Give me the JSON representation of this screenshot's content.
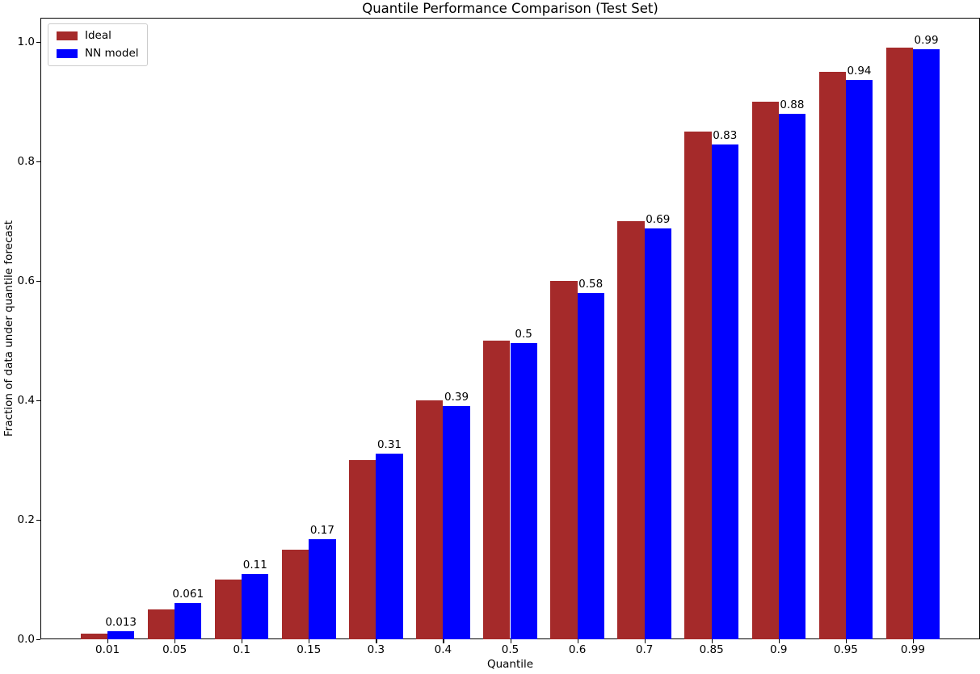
{
  "chart_data": {
    "type": "bar",
    "title": "Quantile Performance Comparison (Test Set)",
    "xlabel": "Quantile",
    "ylabel": "Fraction of data under quantile forecast",
    "categories": [
      "0.01",
      "0.05",
      "0.1",
      "0.15",
      "0.3",
      "0.4",
      "0.5",
      "0.6",
      "0.7",
      "0.85",
      "0.9",
      "0.95",
      "0.99"
    ],
    "series": [
      {
        "name": "Ideal",
        "color": "#A52A2A",
        "values": [
          0.01,
          0.05,
          0.1,
          0.15,
          0.3,
          0.4,
          0.5,
          0.6,
          0.7,
          0.85,
          0.9,
          0.95,
          0.99
        ]
      },
      {
        "name": "NN model",
        "color": "#0000FF",
        "values": [
          0.013,
          0.061,
          0.11,
          0.167,
          0.31,
          0.39,
          0.496,
          0.58,
          0.688,
          0.828,
          0.879,
          0.936,
          0.987
        ],
        "bar_labels": [
          "0.013",
          "0.061",
          "0.11",
          "0.17",
          "0.31",
          "0.39",
          "0.5",
          "0.58",
          "0.69",
          "0.83",
          "0.88",
          "0.94",
          "0.99"
        ]
      }
    ],
    "yticks": [
      "0.0",
      "0.2",
      "0.4",
      "0.6",
      "0.8",
      "1.0"
    ],
    "ytick_values": [
      0.0,
      0.2,
      0.4,
      0.6,
      0.8,
      1.0
    ],
    "ylim": [
      0,
      1.04
    ],
    "bar_width_units": 0.4,
    "legend_position": "upper left",
    "grid": false,
    "axis_color": "#000000",
    "background_color": "#ffffff"
  },
  "legend": {
    "items": [
      {
        "label": "Ideal",
        "color": "#A52A2A"
      },
      {
        "label": "NN model",
        "color": "#0000FF"
      }
    ]
  }
}
